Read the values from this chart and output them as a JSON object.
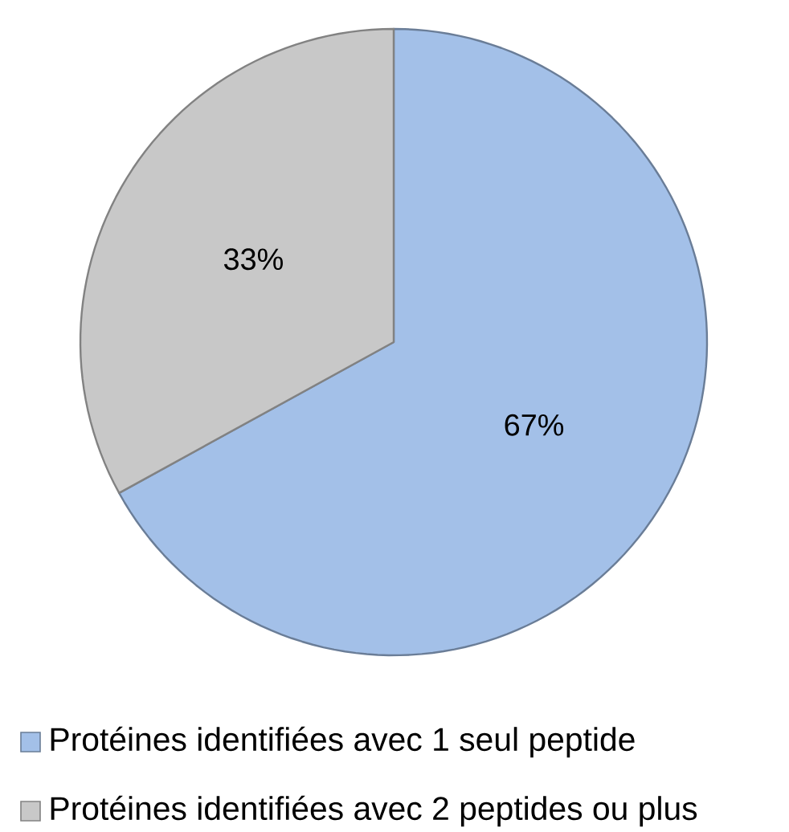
{
  "chart_data": {
    "type": "pie",
    "categories": [
      "Protéines identifiées avec 1 seul peptide",
      "Protéines identifiées avec 2 peptides ou plus"
    ],
    "values": [
      67,
      33
    ],
    "value_labels": [
      "67%",
      "33%"
    ],
    "colors": [
      "#a3c0e8",
      "#c8c8c8"
    ],
    "legend": "bottom"
  }
}
